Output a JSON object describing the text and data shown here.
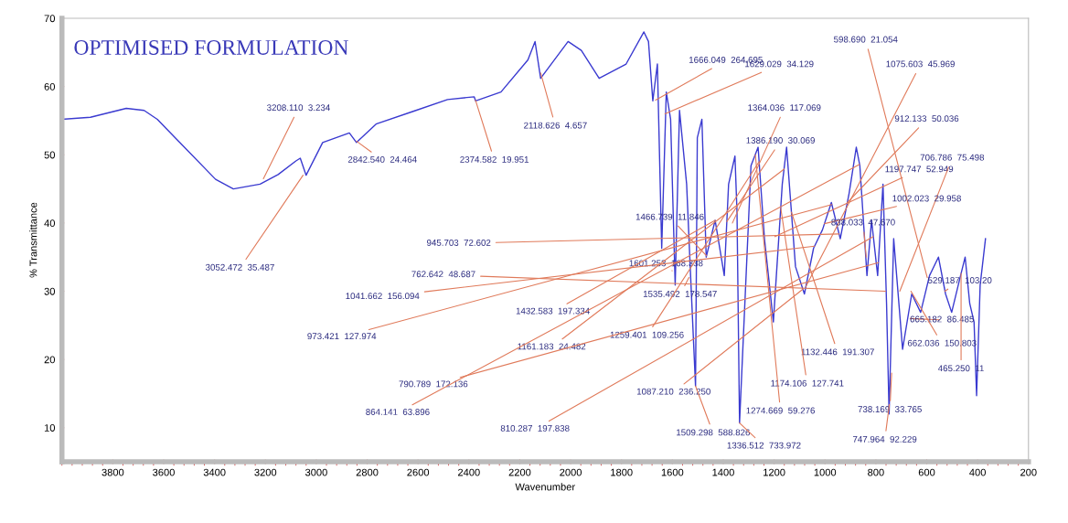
{
  "chart_data": {
    "type": "line",
    "title": "OPTIMISED FORMULATION",
    "xlabel": "Wavenumber",
    "ylabel": "% Transmittance",
    "xlim": [
      4000,
      200
    ],
    "xticks": [
      3800,
      3600,
      3400,
      3200,
      3000,
      2800,
      2600,
      2400,
      2200,
      2000,
      1800,
      1600,
      1400,
      1200,
      1000,
      800,
      600,
      400,
      200
    ],
    "ylim": [
      5,
      70
    ],
    "yticks": [
      10,
      20,
      30,
      40,
      50,
      60,
      70
    ],
    "grid": false,
    "legend": false,
    "marker": "none",
    "line_style": "solid",
    "series": [
      {
        "color": "#3a3ad0",
        "x": [
          4000,
          3888,
          3747,
          3677,
          3625,
          3537,
          3396,
          3326,
          3221,
          3150,
          3080,
          3063,
          3040,
          2975,
          2870,
          2842,
          2765,
          2624,
          2484,
          2379,
          2374,
          2274,
          2168,
          2140,
          2118,
          2010,
          1958,
          1888,
          1782,
          1712,
          1694,
          1677,
          1659,
          1642,
          1624,
          1607,
          1589,
          1572,
          1544,
          1530,
          1509,
          1502,
          1484,
          1467,
          1432,
          1396,
          1379,
          1354,
          1346,
          1336,
          1291,
          1263,
          1238,
          1203,
          1168,
          1151,
          1116,
          1081,
          1045,
          1010,
          975,
          940,
          905,
          877,
          863,
          835,
          817,
          793,
          772,
          758,
          748,
          730,
          695,
          659,
          624,
          589,
          554,
          526,
          502,
          467,
          449,
          431,
          414,
          404,
          390,
          369
        ],
        "values": [
          55.2,
          55.5,
          56.8,
          56.5,
          55.2,
          51.8,
          46.4,
          45,
          45.7,
          47.1,
          49.1,
          49.5,
          47,
          51.8,
          53.2,
          51.8,
          54.5,
          56.3,
          58.1,
          58.5,
          57.9,
          59.2,
          63.9,
          66.6,
          61.2,
          66.6,
          65.3,
          61.2,
          63.3,
          68,
          66.6,
          57.9,
          63.3,
          36.3,
          59.2,
          55.2,
          30.9,
          56.5,
          45.7,
          33.6,
          16.1,
          52.5,
          55.2,
          35,
          40.4,
          32.3,
          45.7,
          49.8,
          41.7,
          10.7,
          48.4,
          51.1,
          37.7,
          25.5,
          45.7,
          51.1,
          33.6,
          29.6,
          36.3,
          39,
          43,
          37.7,
          44.4,
          51.1,
          48.4,
          32.3,
          40.4,
          32.3,
          45.7,
          28.2,
          12,
          37.7,
          21.5,
          29.6,
          26.9,
          32.3,
          35,
          29.6,
          26.9,
          32.3,
          35,
          28.2,
          25.5,
          14.7,
          30.9,
          37.7
        ]
      }
    ],
    "annotations": [
      {
        "text": "3208.110  3.234",
        "x": 3208,
        "y": 46.5
      },
      {
        "text": "3052.472  35.487",
        "x": 3052,
        "y": 47
      },
      {
        "text": "2842.540  24.464",
        "x": 2842,
        "y": 52
      },
      {
        "text": "2374.582  19.951",
        "x": 2374,
        "y": 58
      },
      {
        "text": "2118.626  4.657",
        "x": 2118,
        "y": 62
      },
      {
        "text": "1666.049  264.695",
        "x": 1666,
        "y": 58
      },
      {
        "text": "1629.029  34.129",
        "x": 1629,
        "y": 56
      },
      {
        "text": "1364.036  117.069",
        "x": 1364,
        "y": 40
      },
      {
        "text": "1386.190  30.069",
        "x": 1386,
        "y": 40.2
      },
      {
        "text": "598.690  21.054",
        "x": 598,
        "y": 32
      },
      {
        "text": "1075.603  45.969",
        "x": 1075,
        "y": 30.7
      },
      {
        "text": "912.133  50.036",
        "x": 912,
        "y": 43
      },
      {
        "text": "1197.747  52.949",
        "x": 1197,
        "y": 38
      },
      {
        "text": "706.786  75.498",
        "x": 706,
        "y": 30
      },
      {
        "text": "1002.023  29.958",
        "x": 1002,
        "y": 39.9
      },
      {
        "text": "838.033  47.670",
        "x": 838,
        "y": 35
      },
      {
        "text": "1466.739  11.846",
        "x": 1466,
        "y": 35.2
      },
      {
        "text": "945.703  72.602",
        "x": 945,
        "y": 38.4
      },
      {
        "text": "1601.253  168.338",
        "x": 1601,
        "y": 33
      },
      {
        "text": "762.642  48.687",
        "x": 762,
        "y": 30
      },
      {
        "text": "1535.492  178.547",
        "x": 1535,
        "y": 32
      },
      {
        "text": "1041.662  156.094",
        "x": 1041,
        "y": 36.6
      },
      {
        "text": "1432.583  197.334",
        "x": 1432,
        "y": 40.4
      },
      {
        "text": "973.421  127.974",
        "x": 973,
        "y": 42.7
      },
      {
        "text": "1161.183  24.482",
        "x": 1161,
        "y": 47.9
      },
      {
        "text": "1259.401  109.256",
        "x": 1259,
        "y": 49.0
      },
      {
        "text": "790.789  172.136",
        "x": 790,
        "y": 34.2
      },
      {
        "text": "1087.210  236.250",
        "x": 1087,
        "y": 30.3
      },
      {
        "text": "864.141  63.896",
        "x": 864,
        "y": 48.6
      },
      {
        "text": "810.287  197.838",
        "x": 810,
        "y": 38.0
      },
      {
        "text": "1509.298  588.826",
        "x": 1509,
        "y": 16.1
      },
      {
        "text": "1132.446  191.307",
        "x": 1132,
        "y": 41.6
      },
      {
        "text": "1174.106  127.741",
        "x": 1174,
        "y": 42.2
      },
      {
        "text": "1274.669  59.276",
        "x": 1274,
        "y": 50.0
      },
      {
        "text": "1336.512  733.972",
        "x": 1336,
        "y": 10.7
      },
      {
        "text": "738.169  33.765",
        "x": 738,
        "y": 18
      },
      {
        "text": "747.964  92.229",
        "x": 747,
        "y": 13.4
      },
      {
        "text": "529.187  103.20",
        "x": 529,
        "y": 30
      },
      {
        "text": "665.182  86.485",
        "x": 665,
        "y": 26
      },
      {
        "text": "662.036  150.803",
        "x": 662,
        "y": 30
      },
      {
        "text": "465.250  11",
        "x": 465,
        "y": 32.6
      }
    ]
  }
}
